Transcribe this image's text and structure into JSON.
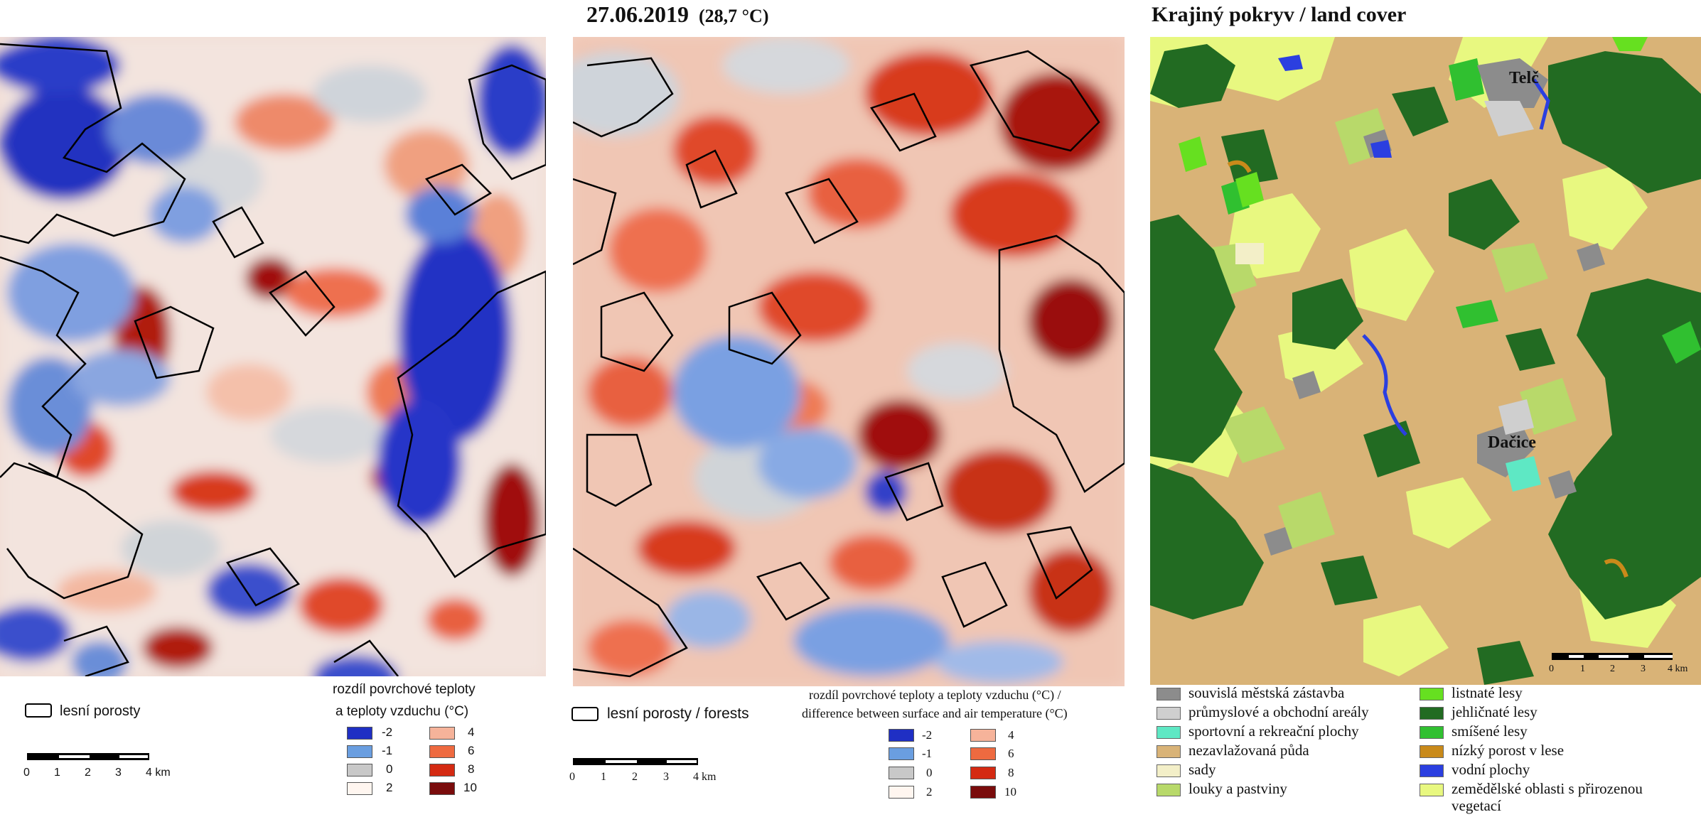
{
  "header": {
    "date": "27.06.2019",
    "air_temp": "(28,7 °C)",
    "landcover_title": "Krajiný pokryv / land cover"
  },
  "legend_left": {
    "forest_label": "lesní porosty",
    "diff_title_1": "rozdíl povrchové teploty",
    "diff_title_2": "a teploty vzduchu (°C)",
    "classes_col1": [
      "-2",
      "-1",
      "0",
      "2"
    ],
    "classes_col2": [
      "4",
      "6",
      "8",
      "10"
    ],
    "scale_labels": [
      "0",
      "1",
      "2",
      "3",
      "4 km"
    ]
  },
  "legend_middle": {
    "forest_label": "lesní porosty / forests",
    "diff_title_1": "rozdíl povrchové teploty a teploty vzduchu (°C) /",
    "diff_title_2": "difference between surface and air temperature (°C)",
    "classes_col1": [
      "-2",
      "-1",
      "0",
      "2"
    ],
    "classes_col2": [
      "4",
      "6",
      "8",
      "10"
    ],
    "scale_labels": [
      "0",
      "1",
      "2",
      "3",
      "4 km"
    ]
  },
  "map_labels": {
    "telc": "Telč",
    "dacice": "Dačice",
    "scale_labels": [
      "0",
      "1",
      "2",
      "3",
      "4 km"
    ]
  },
  "landcover_legend": {
    "col1": [
      {
        "label": "souvislá městská zástavba",
        "color": "#8c8c8c"
      },
      {
        "label": "průmyslové a obchodní areály",
        "color": "#cfcfcf"
      },
      {
        "label": "sportovní a rekreační plochy",
        "color": "#5ee8c4"
      },
      {
        "label": "nezavlažovaná půda",
        "color": "#d9b377"
      },
      {
        "label": "sady",
        "color": "#f3efc8"
      },
      {
        "label": "louky a pastviny",
        "color": "#b8d96a"
      }
    ],
    "col2": [
      {
        "label": "listnaté lesy",
        "color": "#66e020"
      },
      {
        "label": "jehličnaté lesy",
        "color": "#226b22"
      },
      {
        "label": "smíšené lesy",
        "color": "#30c030"
      },
      {
        "label": "nízký porost v lese",
        "color": "#c98a1a"
      },
      {
        "label": "vodní plochy",
        "color": "#2b3fe0"
      },
      {
        "label": "zemědělské oblasti s přirozenou",
        "color": "#e8f880"
      }
    ],
    "col2_extra": "vegetací"
  },
  "colors": {
    "c_m2": "#1f2fc4",
    "c_m1": "#6a9ee0",
    "c_0": "#c8c8c8",
    "c_2": "#fff6f0",
    "c_4": "#f6b39a",
    "c_6": "#ee6a40",
    "c_8": "#d42a12",
    "c_10": "#7a0c0c"
  }
}
